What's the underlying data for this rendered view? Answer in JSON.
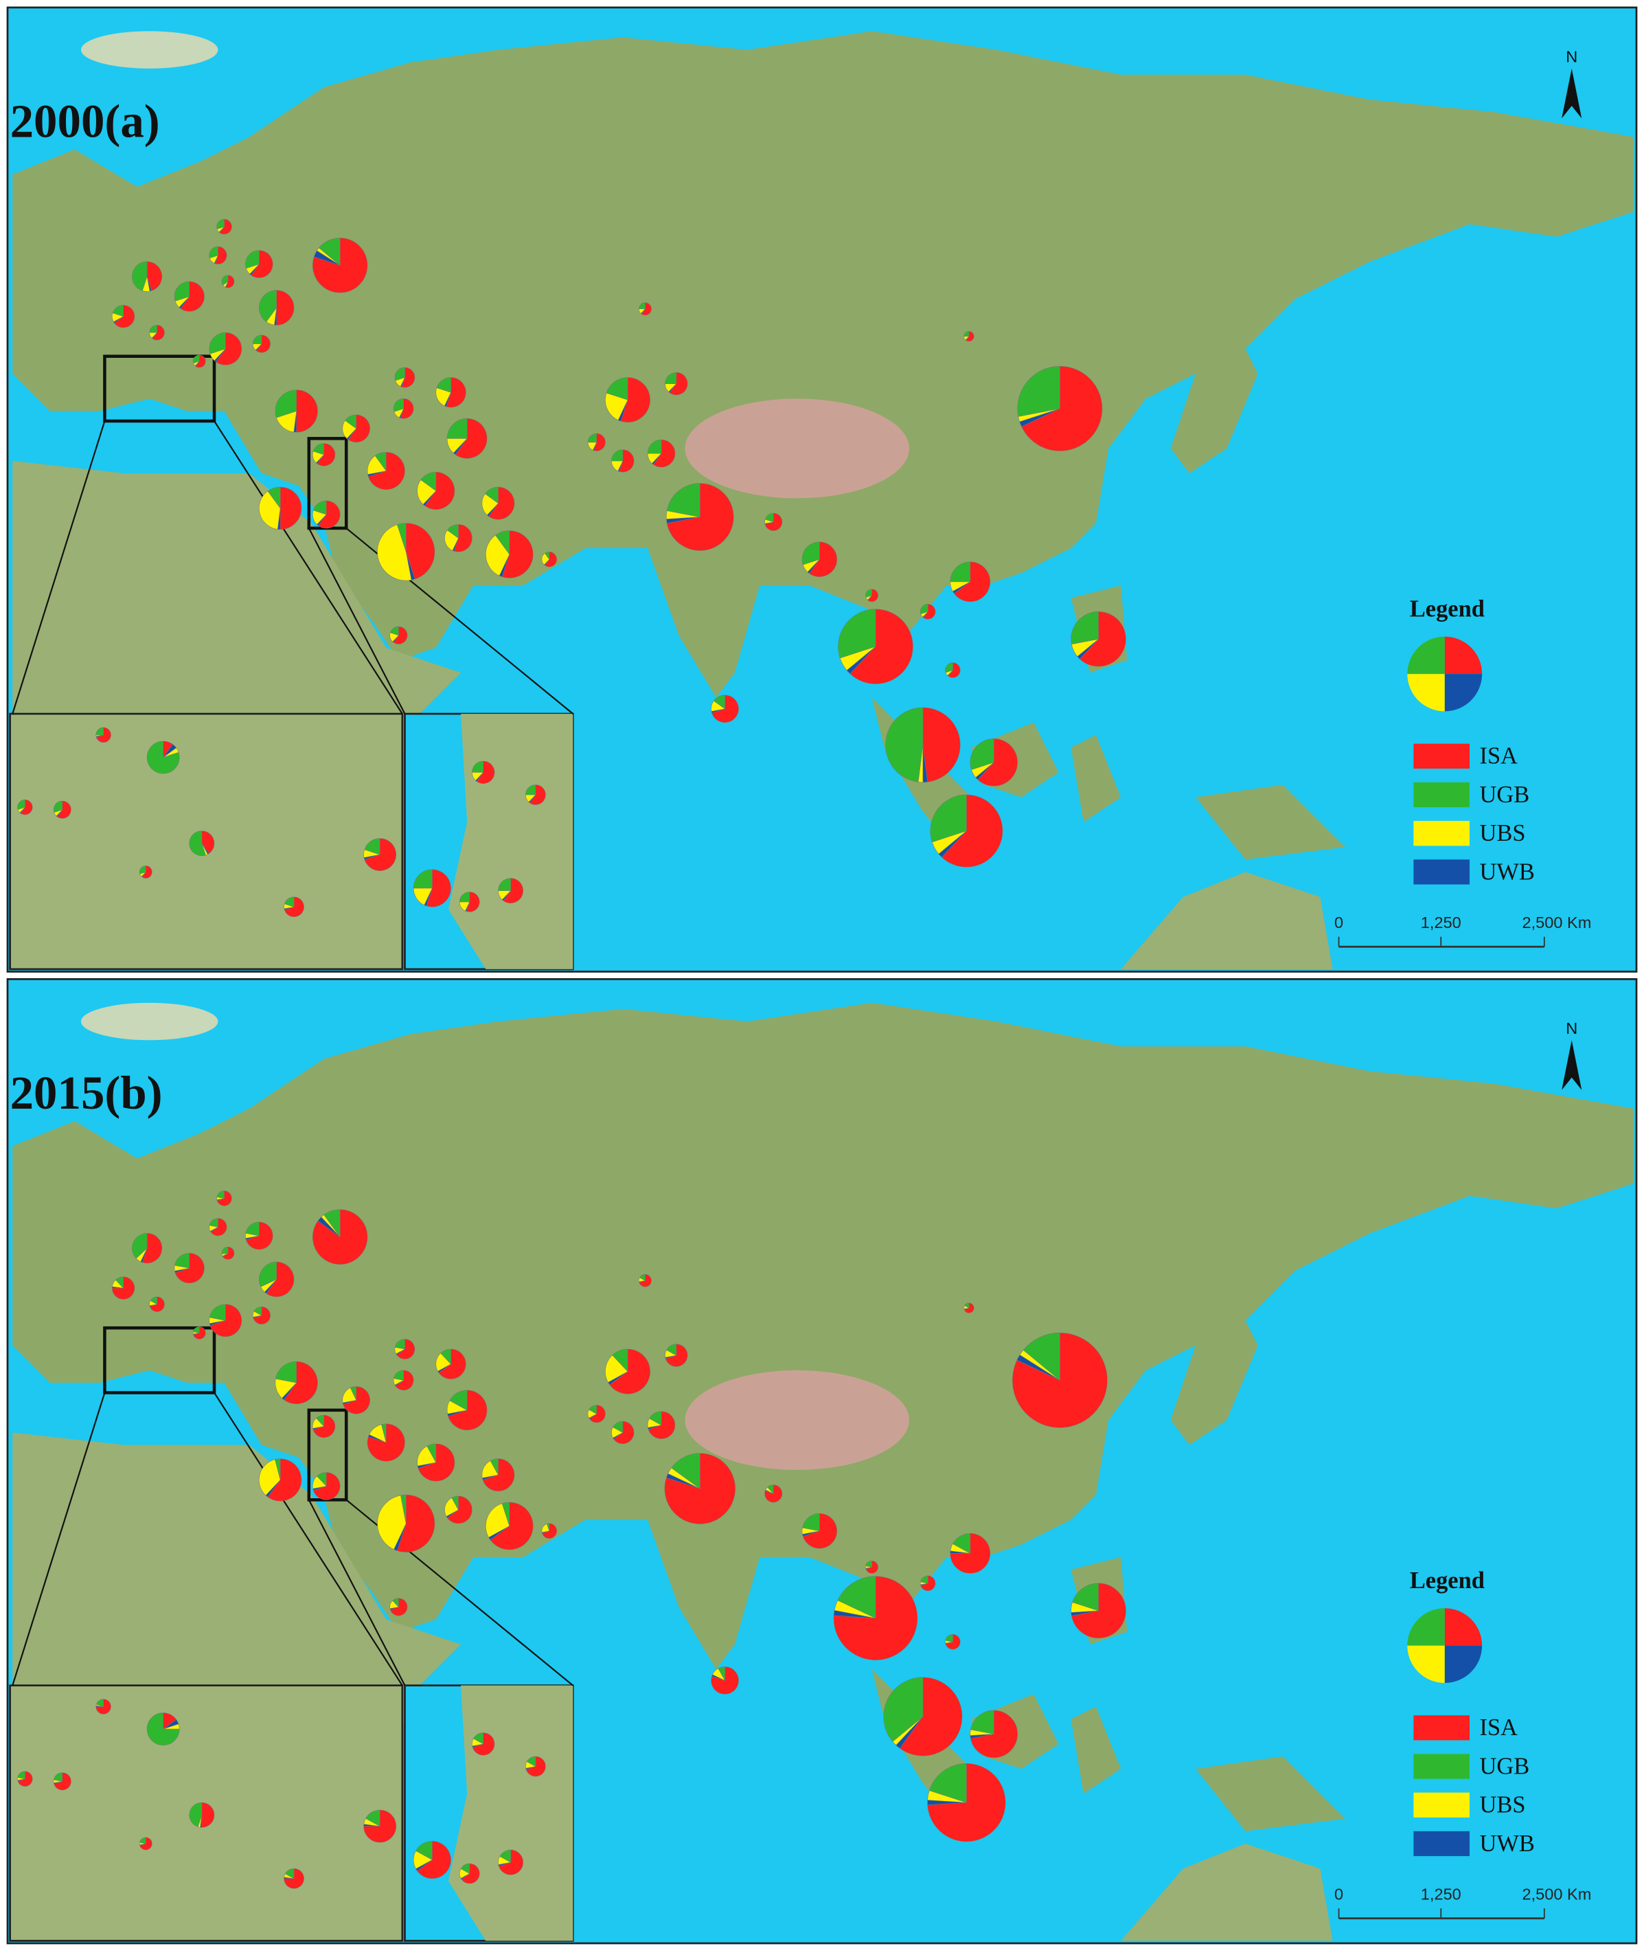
{
  "north": "N",
  "legend": {
    "title": "Legend",
    "items": [
      {
        "label": "ISA",
        "color": "#ff1f1f"
      },
      {
        "label": "UGB",
        "color": "#2fb82f"
      },
      {
        "label": "UBS",
        "color": "#fff200"
      },
      {
        "label": "UWB",
        "color": "#1550a8"
      }
    ]
  },
  "scale_labels": [
    "0",
    "1,250",
    "2,500 Km"
  ],
  "panels": [
    {
      "title": "2000(a)",
      "pies": [
        {
          "values": [
            80,
            14,
            2,
            4
          ]
        },
        {
          "values": [
            60,
            30,
            8,
            2
          ]
        },
        {
          "values": [
            55,
            30,
            13,
            2
          ]
        },
        {
          "values": [
            60,
            30,
            8,
            2
          ]
        },
        {
          "values": [
            45,
            45,
            8,
            2
          ]
        },
        {
          "values": [
            60,
            30,
            8,
            2
          ]
        },
        {
          "values": [
            55,
            35,
            8,
            2
          ]
        },
        {
          "values": [
            50,
            40,
            8,
            2
          ]
        },
        {
          "values": [
            65,
            20,
            13,
            2
          ]
        },
        {
          "values": [
            60,
            25,
            13,
            2
          ]
        },
        {
          "values": [
            60,
            30,
            8,
            2
          ]
        },
        {
          "values": [
            60,
            25,
            13,
            2
          ]
        },
        {
          "values": [
            60,
            30,
            8,
            2
          ]
        },
        {
          "values": [
            50,
            30,
            18,
            2
          ]
        },
        {
          "values": [
            60,
            15,
            23,
            2
          ]
        },
        {
          "values": [
            55,
            30,
            13,
            2
          ]
        },
        {
          "values": [
            55,
            30,
            13,
            2
          ]
        },
        {
          "values": [
            55,
            20,
            23,
            2
          ]
        },
        {
          "values": [
            60,
            25,
            13,
            2
          ]
        },
        {
          "values": [
            60,
            20,
            18,
            2
          ]
        },
        {
          "values": [
            70,
            10,
            18,
            2
          ]
        },
        {
          "values": [
            60,
            15,
            23,
            2
          ]
        },
        {
          "values": [
            60,
            15,
            23,
            2
          ]
        },
        {
          "values": [
            50,
            10,
            38,
            2
          ]
        },
        {
          "values": [
            60,
            20,
            18,
            2
          ]
        },
        {
          "values": [
            45,
            5,
            48,
            2
          ]
        },
        {
          "values": [
            55,
            15,
            28,
            2
          ]
        },
        {
          "values": [
            55,
            10,
            33,
            2
          ]
        },
        {
          "values": [
            60,
            10,
            28,
            2
          ]
        },
        {
          "values": [
            60,
            20,
            18,
            2
          ]
        },
        {
          "values": [
            55,
            20,
            23,
            2
          ]
        },
        {
          "values": [
            60,
            25,
            13,
            2
          ]
        },
        {
          "values": [
            55,
            25,
            18,
            2
          ]
        },
        {
          "values": [
            55,
            25,
            18,
            2
          ]
        },
        {
          "values": [
            60,
            25,
            13,
            2
          ]
        },
        {
          "values": [
            60,
            25,
            13,
            2
          ]
        },
        {
          "values": [
            60,
            25,
            13,
            2
          ]
        },
        {
          "values": [
            68,
            28,
            2,
            2
          ]
        },
        {
          "values": [
            72,
            22,
            4,
            2
          ]
        },
        {
          "values": [
            70,
            20,
            8,
            2
          ]
        },
        {
          "values": [
            60,
            30,
            8,
            2
          ]
        },
        {
          "values": [
            60,
            30,
            8,
            2
          ]
        },
        {
          "values": [
            65,
            25,
            8,
            2
          ]
        },
        {
          "values": [
            60,
            30,
            8,
            2
          ]
        },
        {
          "values": [
            62,
            30,
            6,
            2
          ]
        },
        {
          "values": [
            60,
            30,
            8,
            2
          ]
        },
        {
          "values": [
            62,
            28,
            8,
            2
          ]
        },
        {
          "values": [
            48,
            48,
            2,
            2
          ]
        },
        {
          "values": [
            62,
            30,
            6,
            2
          ]
        },
        {
          "values": [
            62,
            30,
            6,
            2
          ]
        },
        {
          "values": [
            70,
            15,
            13,
            2
          ]
        },
        {
          "values": [
            10,
            80,
            5,
            5
          ]
        },
        {
          "values": [
            70,
            25,
            3,
            2
          ]
        },
        {
          "values": [
            60,
            30,
            8,
            2
          ]
        },
        {
          "values": [
            40,
            55,
            3,
            2
          ]
        },
        {
          "values": [
            70,
            20,
            8,
            2
          ]
        },
        {
          "values": [
            70,
            20,
            8,
            2
          ]
        },
        {
          "values": [
            60,
            30,
            8,
            2
          ]
        },
        {
          "values": [
            60,
            30,
            8,
            2
          ]
        },
        {
          "values": [
            60,
            25,
            13,
            2
          ]
        },
        {
          "values": [
            60,
            25,
            13,
            2
          ]
        },
        {
          "values": [
            55,
            25,
            18,
            2
          ]
        },
        {
          "values": [
            55,
            25,
            18,
            2
          ]
        },
        {
          "values": [
            60,
            25,
            13,
            2
          ]
        }
      ]
    },
    {
      "title": "2015(b)",
      "pies": [
        {
          "values": [
            85,
            10,
            2,
            3
          ]
        },
        {
          "values": [
            70,
            22,
            6,
            2
          ]
        },
        {
          "values": [
            65,
            22,
            11,
            2
          ]
        },
        {
          "values": [
            70,
            22,
            6,
            2
          ]
        },
        {
          "values": [
            55,
            37,
            6,
            2
          ]
        },
        {
          "values": [
            70,
            22,
            6,
            2
          ]
        },
        {
          "values": [
            65,
            27,
            6,
            2
          ]
        },
        {
          "values": [
            60,
            32,
            6,
            2
          ]
        },
        {
          "values": [
            75,
            12,
            11,
            2
          ]
        },
        {
          "values": [
            70,
            17,
            11,
            2
          ]
        },
        {
          "values": [
            70,
            22,
            6,
            2
          ]
        },
        {
          "values": [
            70,
            17,
            11,
            2
          ]
        },
        {
          "values": [
            70,
            22,
            6,
            2
          ]
        },
        {
          "values": [
            60,
            22,
            16,
            2
          ]
        },
        {
          "values": [
            70,
            7,
            21,
            2
          ]
        },
        {
          "values": [
            65,
            22,
            11,
            2
          ]
        },
        {
          "values": [
            65,
            22,
            11,
            2
          ]
        },
        {
          "values": [
            65,
            12,
            21,
            2
          ]
        },
        {
          "values": [
            70,
            17,
            11,
            2
          ]
        },
        {
          "values": [
            70,
            12,
            16,
            2
          ]
        },
        {
          "values": [
            80,
            4,
            14,
            2
          ]
        },
        {
          "values": [
            70,
            8,
            20,
            2
          ]
        },
        {
          "values": [
            70,
            8,
            20,
            2
          ]
        },
        {
          "values": [
            60,
            4,
            34,
            2
          ]
        },
        {
          "values": [
            70,
            12,
            16,
            2
          ]
        },
        {
          "values": [
            55,
            3,
            40,
            2
          ]
        },
        {
          "values": [
            65,
            8,
            25,
            2
          ]
        },
        {
          "values": [
            65,
            5,
            28,
            2
          ]
        },
        {
          "values": [
            70,
            5,
            23,
            2
          ]
        },
        {
          "values": [
            70,
            12,
            16,
            2
          ]
        },
        {
          "values": [
            65,
            12,
            21,
            2
          ]
        },
        {
          "values": [
            70,
            17,
            11,
            2
          ]
        },
        {
          "values": [
            65,
            17,
            16,
            2
          ]
        },
        {
          "values": [
            65,
            17,
            16,
            2
          ]
        },
        {
          "values": [
            70,
            17,
            11,
            2
          ]
        },
        {
          "values": [
            70,
            17,
            11,
            2
          ]
        },
        {
          "values": [
            70,
            17,
            11,
            2
          ]
        },
        {
          "values": [
            82,
            14,
            2,
            2
          ]
        },
        {
          "values": [
            80,
            15,
            3,
            2
          ]
        },
        {
          "values": [
            80,
            12,
            6,
            2
          ]
        },
        {
          "values": [
            70,
            22,
            6,
            2
          ]
        },
        {
          "values": [
            70,
            22,
            6,
            2
          ]
        },
        {
          "values": [
            75,
            17,
            6,
            2
          ]
        },
        {
          "values": [
            70,
            22,
            6,
            2
          ]
        },
        {
          "values": [
            76,
            18,
            4,
            2
          ]
        },
        {
          "values": [
            70,
            22,
            6,
            2
          ]
        },
        {
          "values": [
            72,
            20,
            6,
            2
          ]
        },
        {
          "values": [
            60,
            36,
            2,
            2
          ]
        },
        {
          "values": [
            72,
            22,
            4,
            2
          ]
        },
        {
          "values": [
            74,
            20,
            4,
            2
          ]
        },
        {
          "values": [
            80,
            8,
            10,
            2
          ]
        },
        {
          "values": [
            15,
            75,
            5,
            5
          ]
        },
        {
          "values": [
            75,
            20,
            3,
            2
          ]
        },
        {
          "values": [
            70,
            22,
            6,
            2
          ]
        },
        {
          "values": [
            50,
            45,
            3,
            2
          ]
        },
        {
          "values": [
            75,
            17,
            6,
            2
          ]
        },
        {
          "values": [
            75,
            17,
            6,
            2
          ]
        },
        {
          "values": [
            70,
            22,
            6,
            2
          ]
        },
        {
          "values": [
            70,
            22,
            6,
            2
          ]
        },
        {
          "values": [
            70,
            17,
            11,
            2
          ]
        },
        {
          "values": [
            70,
            17,
            11,
            2
          ]
        },
        {
          "values": [
            65,
            17,
            16,
            2
          ]
        },
        {
          "values": [
            65,
            17,
            16,
            2
          ]
        },
        {
          "values": [
            70,
            17,
            11,
            2
          ]
        }
      ]
    }
  ]
}
